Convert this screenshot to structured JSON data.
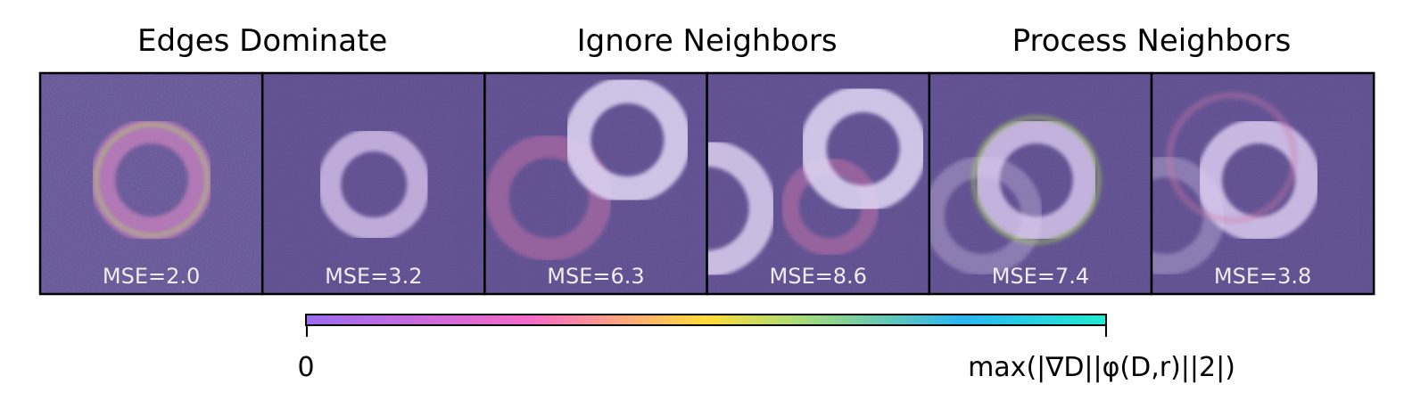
{
  "groups": [
    {
      "title": "Edges Dominate",
      "panels": [
        {
          "label": "MSE=2.0"
        },
        {
          "label": "MSE=3.2"
        }
      ]
    },
    {
      "title": "Ignore Neighbors",
      "panels": [
        {
          "label": "MSE=6.3"
        },
        {
          "label": "MSE=8.6"
        }
      ]
    },
    {
      "title": "Process Neighbors",
      "panels": [
        {
          "label": "MSE=7.4"
        },
        {
          "label": "MSE=3.8"
        }
      ]
    }
  ],
  "colorbar": {
    "min_label": "0",
    "max_label": "max(|∇D||φ(D,r)||2|)"
  }
}
